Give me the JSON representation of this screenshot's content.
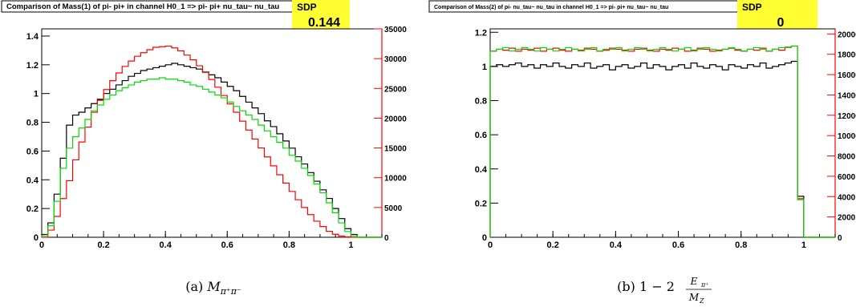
{
  "chart_data": [
    {
      "type": "line",
      "title": "Comparison of Mass(1) of pi- pi+ in channel H0_1 => pi- pi+ nu_tau~ nu_tau",
      "sdp_label": "SDP",
      "sdp_value": "0.144",
      "caption_prefix": "(a)",
      "caption_main": "M",
      "caption_sub": "π⁺π⁻",
      "xlim": [
        0,
        1.1
      ],
      "ylim_left": [
        0,
        1.45
      ],
      "ylim_right": [
        0,
        35000
      ],
      "x_ticks": [
        "0",
        "0.2",
        "0.4",
        "0.6",
        "0.8",
        "1"
      ],
      "y_ticks_left": [
        "0",
        "0.2",
        "0.4",
        "0.6",
        "0.8",
        "1",
        "1.2",
        "1.4"
      ],
      "y_ticks_right": [
        "0",
        "5000",
        "10000",
        "15000",
        "20000",
        "25000",
        "30000",
        "35000"
      ],
      "grid": false,
      "series": [
        {
          "color": "#000000",
          "axis": "left",
          "x": [
            0.0,
            0.02,
            0.04,
            0.06,
            0.08,
            0.1,
            0.12,
            0.14,
            0.16,
            0.18,
            0.2,
            0.22,
            0.24,
            0.26,
            0.28,
            0.3,
            0.32,
            0.34,
            0.36,
            0.38,
            0.4,
            0.42,
            0.44,
            0.46,
            0.48,
            0.5,
            0.52,
            0.54,
            0.56,
            0.58,
            0.6,
            0.62,
            0.64,
            0.66,
            0.68,
            0.7,
            0.72,
            0.74,
            0.76,
            0.78,
            0.8,
            0.82,
            0.84,
            0.86,
            0.88,
            0.9,
            0.92,
            0.94,
            0.96,
            0.98,
            1.0,
            1.02,
            1.04,
            1.06,
            1.08
          ],
          "y": [
            0.02,
            0.1,
            0.3,
            0.55,
            0.78,
            0.85,
            0.87,
            0.9,
            0.93,
            0.96,
            1.0,
            1.03,
            1.06,
            1.09,
            1.12,
            1.14,
            1.16,
            1.17,
            1.18,
            1.19,
            1.2,
            1.21,
            1.2,
            1.19,
            1.18,
            1.17,
            1.15,
            1.13,
            1.11,
            1.08,
            1.05,
            1.02,
            0.98,
            0.94,
            0.9,
            0.86,
            0.81,
            0.77,
            0.72,
            0.67,
            0.62,
            0.56,
            0.51,
            0.45,
            0.39,
            0.33,
            0.27,
            0.2,
            0.13,
            0.06,
            0.02,
            0.0,
            0.0,
            0.0,
            0.0
          ]
        },
        {
          "color": "#ff0000",
          "axis": "right",
          "x": [
            0.0,
            0.02,
            0.04,
            0.06,
            0.08,
            0.1,
            0.12,
            0.14,
            0.16,
            0.18,
            0.2,
            0.22,
            0.24,
            0.26,
            0.28,
            0.3,
            0.32,
            0.34,
            0.36,
            0.38,
            0.4,
            0.42,
            0.44,
            0.46,
            0.48,
            0.5,
            0.52,
            0.54,
            0.56,
            0.58,
            0.6,
            0.62,
            0.64,
            0.66,
            0.68,
            0.7,
            0.72,
            0.74,
            0.76,
            0.78,
            0.8,
            0.82,
            0.84,
            0.86,
            0.88,
            0.9,
            0.92,
            0.94,
            0.96,
            0.98,
            1.0,
            1.02,
            1.04,
            1.06,
            1.08
          ],
          "y": [
            0,
            1200,
            3500,
            6500,
            9500,
            13000,
            16000,
            18500,
            21000,
            23000,
            24800,
            26300,
            27600,
            28700,
            29600,
            30400,
            31000,
            31500,
            31900,
            32000,
            32100,
            31800,
            31300,
            30600,
            29800,
            28800,
            27700,
            26500,
            25200,
            23800,
            22400,
            21000,
            19500,
            18000,
            16500,
            15000,
            13500,
            12000,
            10500,
            9100,
            7700,
            6300,
            5000,
            3800,
            2700,
            1800,
            1000,
            500,
            200,
            50,
            0,
            0,
            0,
            0,
            0
          ]
        },
        {
          "color": "#00dd00",
          "axis": "left",
          "x": [
            0.0,
            0.02,
            0.04,
            0.06,
            0.08,
            0.1,
            0.12,
            0.14,
            0.16,
            0.18,
            0.2,
            0.22,
            0.24,
            0.26,
            0.28,
            0.3,
            0.32,
            0.34,
            0.36,
            0.38,
            0.4,
            0.42,
            0.44,
            0.46,
            0.48,
            0.5,
            0.52,
            0.54,
            0.56,
            0.58,
            0.6,
            0.62,
            0.64,
            0.66,
            0.68,
            0.7,
            0.72,
            0.74,
            0.76,
            0.78,
            0.8,
            0.82,
            0.84,
            0.86,
            0.88,
            0.9,
            0.92,
            0.94,
            0.96,
            0.98,
            1.0,
            1.02,
            1.04,
            1.06,
            1.08
          ],
          "y": [
            0.01,
            0.08,
            0.25,
            0.48,
            0.62,
            0.7,
            0.76,
            0.82,
            0.88,
            0.92,
            0.96,
            0.99,
            1.02,
            1.04,
            1.06,
            1.08,
            1.09,
            1.1,
            1.1,
            1.11,
            1.1,
            1.1,
            1.09,
            1.08,
            1.06,
            1.05,
            1.03,
            1.01,
            0.99,
            0.97,
            0.94,
            0.91,
            0.88,
            0.85,
            0.82,
            0.78,
            0.74,
            0.7,
            0.66,
            0.62,
            0.57,
            0.53,
            0.48,
            0.43,
            0.37,
            0.31,
            0.24,
            0.17,
            0.1,
            0.04,
            0.01,
            0.0,
            0.0,
            0.0,
            0.0
          ]
        }
      ]
    },
    {
      "type": "line",
      "title": "Comparison of Mass(2) of pi- nu_tau~ nu_tau in channel H0_1 => pi- pi+ nu_tau~ nu_tau",
      "sdp_label": "SDP",
      "sdp_value": "0",
      "caption_prefix": "(b)",
      "caption_main": "1 − 2",
      "caption_frac_num": "E",
      "caption_frac_num_sub": "π⁺",
      "caption_frac_den": "M",
      "caption_frac_den_sub": "Z",
      "xlim": [
        0,
        1.1
      ],
      "ylim_left": [
        0,
        1.22
      ],
      "ylim_right": [
        0,
        20500
      ],
      "x_ticks": [
        "0",
        "0.2",
        "0.4",
        "0.6",
        "0.8",
        "1"
      ],
      "y_ticks_left": [
        "0",
        "0.2",
        "0.4",
        "0.6",
        "0.8",
        "1",
        "1.2"
      ],
      "y_ticks_right": [
        "0",
        "2000",
        "4000",
        "6000",
        "8000",
        "10000",
        "12000",
        "14000",
        "16000",
        "18000",
        "20000"
      ],
      "grid": false,
      "series": [
        {
          "color": "#000000",
          "axis": "left",
          "x": [
            0.0,
            0.02,
            0.04,
            0.06,
            0.08,
            0.1,
            0.12,
            0.14,
            0.16,
            0.18,
            0.2,
            0.22,
            0.24,
            0.26,
            0.28,
            0.3,
            0.32,
            0.34,
            0.36,
            0.38,
            0.4,
            0.42,
            0.44,
            0.46,
            0.48,
            0.5,
            0.52,
            0.54,
            0.56,
            0.58,
            0.6,
            0.62,
            0.64,
            0.66,
            0.68,
            0.7,
            0.72,
            0.74,
            0.76,
            0.78,
            0.8,
            0.82,
            0.84,
            0.86,
            0.88,
            0.9,
            0.92,
            0.94,
            0.96,
            0.98,
            1.0,
            1.02,
            1.04,
            1.06,
            1.08
          ],
          "y": [
            1.0,
            1.01,
            1.0,
            1.01,
            1.02,
            1.0,
            1.01,
            0.99,
            1.01,
            1.0,
            1.02,
            1.0,
            0.99,
            1.01,
            1.0,
            1.02,
            0.99,
            1.0,
            1.01,
            0.98,
            1.0,
            1.01,
            0.99,
            1.0,
            1.02,
            0.99,
            1.01,
            1.0,
            0.98,
            1.0,
            1.01,
            0.99,
            1.02,
            1.0,
            0.99,
            1.01,
            1.0,
            0.98,
            1.01,
            1.0,
            0.99,
            1.01,
            1.0,
            1.02,
            0.99,
            1.0,
            1.01,
            1.02,
            1.03,
            0.24,
            0.0,
            0.0,
            0.0,
            0.0,
            0.0
          ]
        },
        {
          "color": "#ff0000",
          "axis": "right",
          "x": [
            0.0,
            0.02,
            0.04,
            0.06,
            0.08,
            0.1,
            0.12,
            0.14,
            0.16,
            0.18,
            0.2,
            0.22,
            0.24,
            0.26,
            0.28,
            0.3,
            0.32,
            0.34,
            0.36,
            0.38,
            0.4,
            0.42,
            0.44,
            0.46,
            0.48,
            0.5,
            0.52,
            0.54,
            0.56,
            0.58,
            0.6,
            0.62,
            0.64,
            0.66,
            0.68,
            0.7,
            0.72,
            0.74,
            0.76,
            0.78,
            0.8,
            0.82,
            0.84,
            0.86,
            0.88,
            0.9,
            0.92,
            0.94,
            0.96,
            0.98,
            1.0,
            1.02,
            1.04,
            1.06,
            1.08
          ],
          "y": [
            18300,
            18500,
            18400,
            18600,
            18300,
            18500,
            18400,
            18600,
            18300,
            18500,
            18600,
            18400,
            18300,
            18500,
            18400,
            18600,
            18500,
            18300,
            18400,
            18600,
            18500,
            18400,
            18300,
            18500,
            18600,
            18400,
            18300,
            18500,
            18400,
            18600,
            18500,
            18300,
            18400,
            18600,
            18500,
            18300,
            18400,
            18500,
            18600,
            18400,
            18300,
            18500,
            18400,
            18600,
            18300,
            18500,
            18400,
            18700,
            18800,
            3800,
            0,
            0,
            0,
            0,
            0
          ]
        },
        {
          "color": "#00dd00",
          "axis": "left",
          "x": [
            0.0,
            0.02,
            0.04,
            0.06,
            0.08,
            0.1,
            0.12,
            0.14,
            0.16,
            0.18,
            0.2,
            0.22,
            0.24,
            0.26,
            0.28,
            0.3,
            0.32,
            0.34,
            0.36,
            0.38,
            0.4,
            0.42,
            0.44,
            0.46,
            0.48,
            0.5,
            0.52,
            0.54,
            0.56,
            0.58,
            0.6,
            0.62,
            0.64,
            0.66,
            0.68,
            0.7,
            0.72,
            0.74,
            0.76,
            0.78,
            0.8,
            0.82,
            0.84,
            0.86,
            0.88,
            0.9,
            0.92,
            0.94,
            0.96,
            0.98,
            1.0,
            1.02,
            1.04,
            1.06,
            1.08
          ],
          "y": [
            1.09,
            1.1,
            1.11,
            1.09,
            1.1,
            1.11,
            1.1,
            1.09,
            1.11,
            1.1,
            1.09,
            1.1,
            1.11,
            1.1,
            1.09,
            1.1,
            1.11,
            1.09,
            1.1,
            1.1,
            1.11,
            1.09,
            1.1,
            1.11,
            1.1,
            1.09,
            1.1,
            1.11,
            1.1,
            1.09,
            1.1,
            1.11,
            1.09,
            1.1,
            1.11,
            1.1,
            1.09,
            1.1,
            1.11,
            1.1,
            1.09,
            1.1,
            1.11,
            1.1,
            1.09,
            1.1,
            1.11,
            1.11,
            1.12,
            0.22,
            0.0,
            0.0,
            0.0,
            0.0,
            0.0
          ]
        }
      ]
    }
  ]
}
